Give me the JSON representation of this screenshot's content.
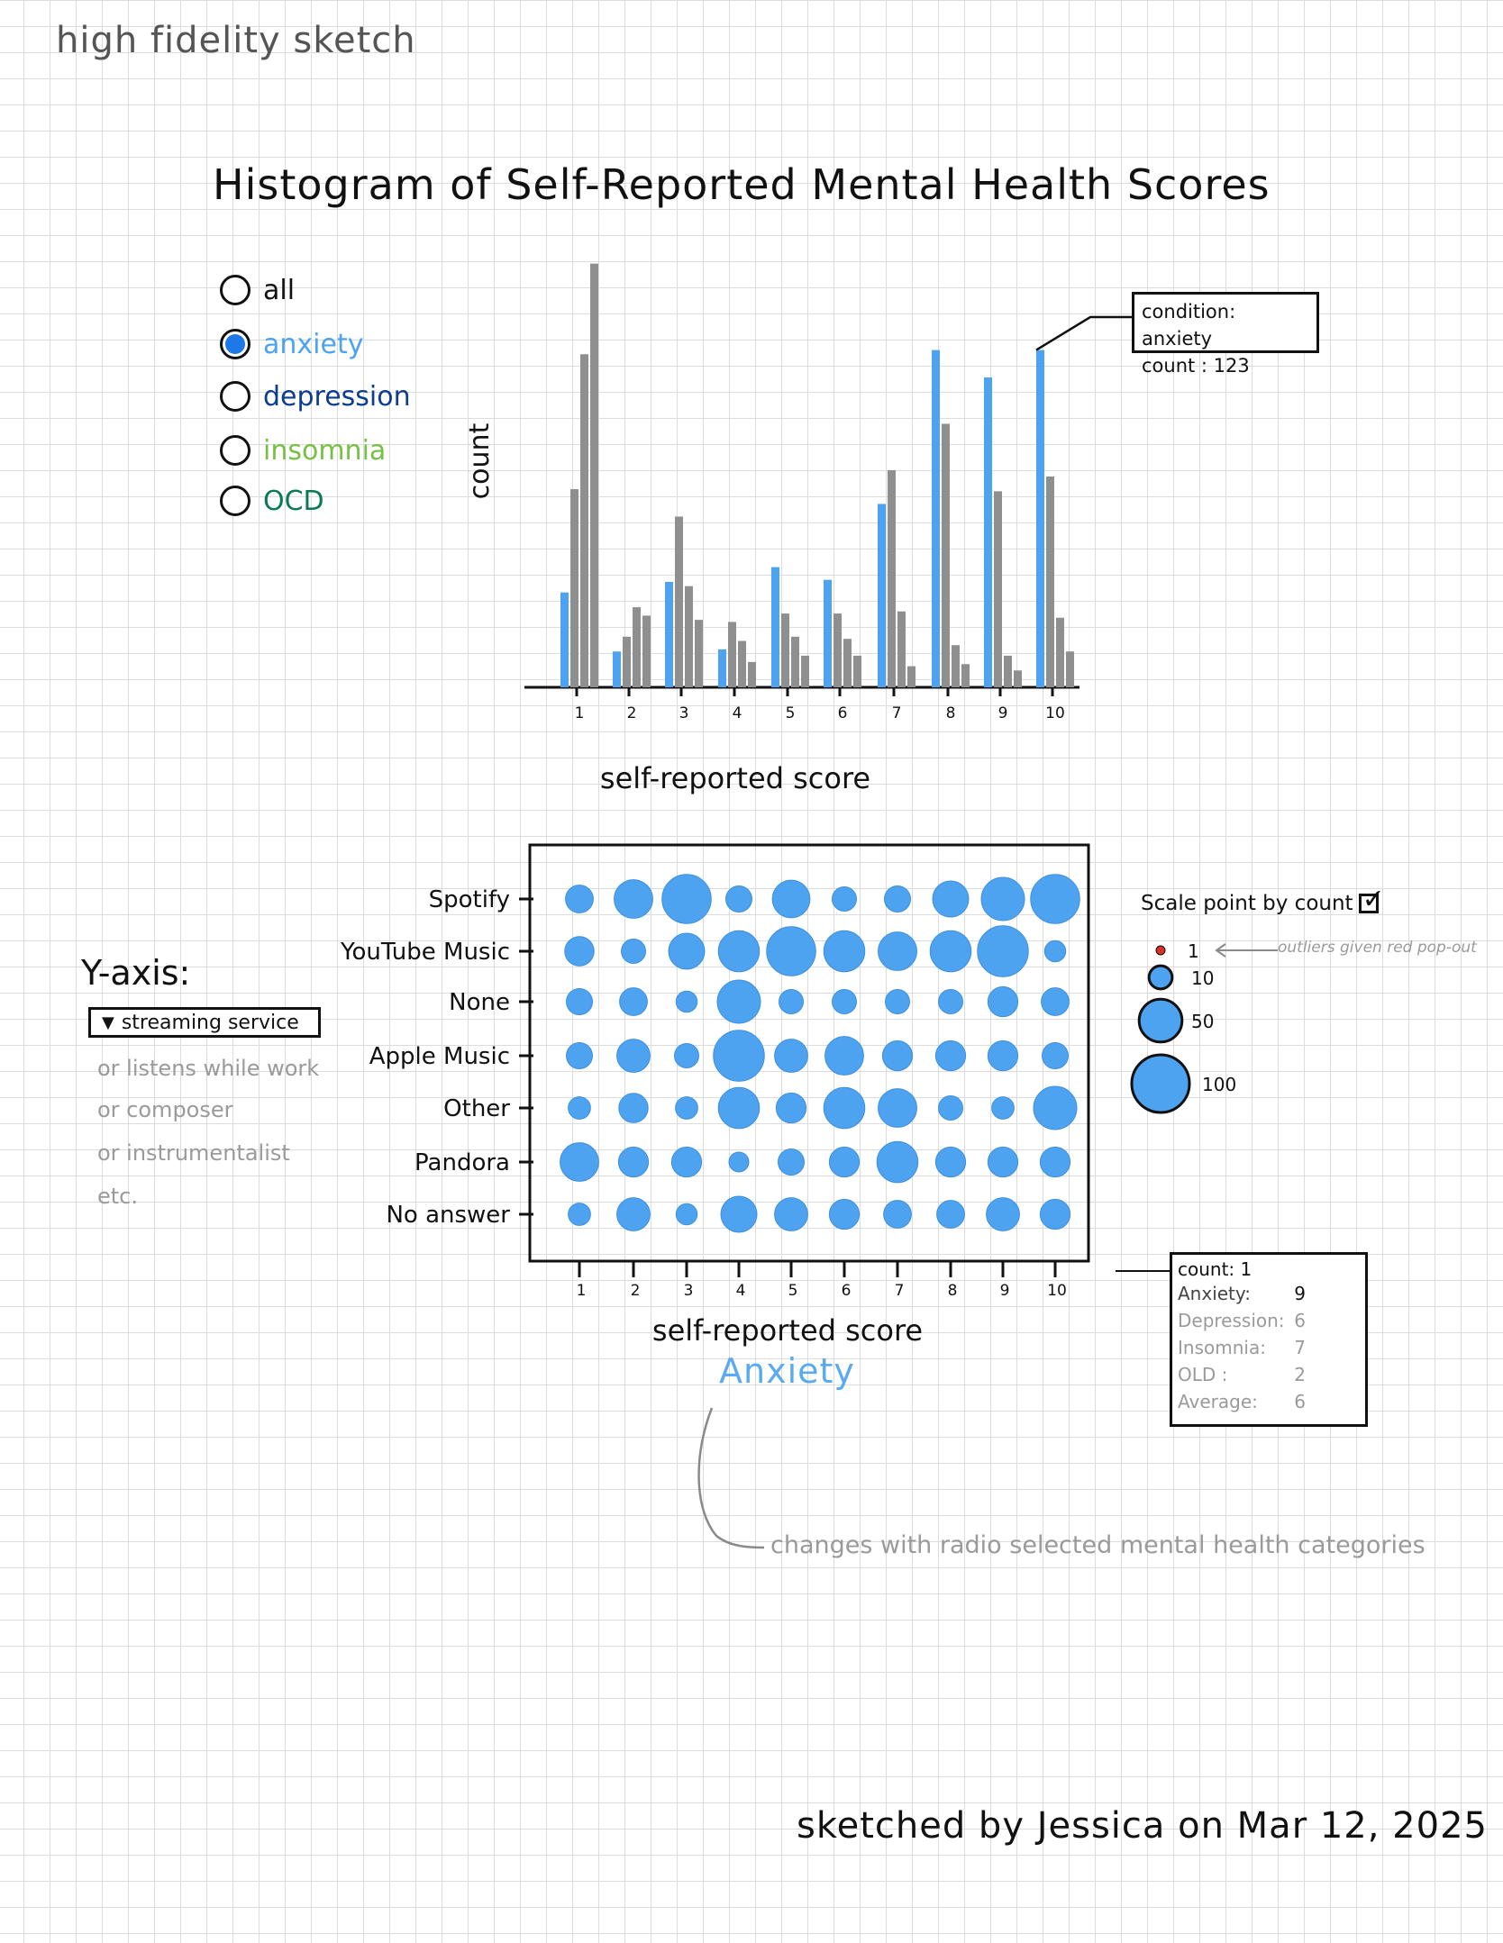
{
  "sketch_label": "high fidelity sketch",
  "histogram": {
    "title": "Histogram of Self-Reported Mental Health Scores",
    "radio_options": [
      {
        "label": "all",
        "color": "#111111",
        "selected": false
      },
      {
        "label": "anxiety",
        "color": "#4ea3f0",
        "selected": true
      },
      {
        "label": "depression",
        "color": "#0b3d91",
        "selected": false
      },
      {
        "label": "insomnia",
        "color": "#76c043",
        "selected": false
      },
      {
        "label": "OCD",
        "color": "#0a7a55",
        "selected": false
      }
    ],
    "tooltip": {
      "condition_line": "condition: anxiety",
      "count_line": "count : 123"
    }
  },
  "scatter": {
    "yaxis_heading": "Y-axis:",
    "yaxis_selected": "streaming service",
    "yaxis_alternatives": [
      "or listens while work",
      "or composer",
      "or instrumentalist",
      "etc."
    ],
    "scale_toggle": {
      "label": "Scale point by count",
      "checked": true
    },
    "outlier_note": "outliers given red pop-out",
    "caption": "Anxiety",
    "detail": {
      "count_line": "count: 1",
      "rows": [
        {
          "label": "Anxiety:",
          "value": "9",
          "muted": false
        },
        {
          "label": "Depression:",
          "value": "6",
          "muted": true
        },
        {
          "label": "Insomnia:",
          "value": "7",
          "muted": true
        },
        {
          "label": "OLD :",
          "value": "2",
          "muted": true
        },
        {
          "label": "Average:",
          "value": "6",
          "muted": true
        }
      ]
    }
  },
  "changes_note": "changes with radio selected mental health categories",
  "signature": "sketched by Jessica on Mar 12, 2025",
  "chart_data": [
    {
      "type": "bar",
      "xlabel": "self-reported score",
      "ylabel": "count",
      "categories": [
        "1",
        "2",
        "3",
        "4",
        "5",
        "6",
        "7",
        "8",
        "9",
        "10"
      ],
      "ylim": [
        0,
        200
      ],
      "highlight_color": "#4ea3f0",
      "other_color": "#8f8f8f",
      "series": [
        {
          "name": "anxiety",
          "values": [
            45,
            17,
            50,
            18,
            57,
            51,
            87,
            160,
            147,
            160
          ]
        },
        {
          "name": "",
          "values": [
            94,
            24,
            81,
            31,
            35,
            35,
            103,
            125,
            93,
            100
          ]
        },
        {
          "name": "",
          "values": [
            158,
            38,
            48,
            22,
            24,
            23,
            36,
            20,
            15,
            33
          ]
        },
        {
          "name": "",
          "values": [
            201,
            34,
            32,
            12,
            15,
            15,
            10,
            11,
            8,
            17
          ]
        }
      ]
    },
    {
      "type": "scatter",
      "xlabel": "self-reported score",
      "x": [
        1,
        2,
        3,
        4,
        5,
        6,
        7,
        8,
        9,
        10
      ],
      "categories": [
        "Spotify",
        "YouTube Music",
        "None",
        "Apple Music",
        "Other",
        "Pandora",
        "No answer"
      ],
      "color": "#4ea3f0",
      "size_legend": [
        1,
        10,
        50,
        100
      ],
      "counts": [
        [
          12,
          30,
          55,
          10,
          28,
          8,
          10,
          25,
          40,
          55
        ],
        [
          14,
          8,
          25,
          35,
          55,
          35,
          30,
          35,
          60,
          5
        ],
        [
          10,
          12,
          5,
          40,
          8,
          8,
          8,
          8,
          15,
          12
        ],
        [
          10,
          20,
          8,
          60,
          20,
          30,
          15,
          15,
          15,
          10
        ],
        [
          6,
          14,
          6,
          35,
          15,
          35,
          30,
          8,
          6,
          40
        ],
        [
          30,
          15,
          15,
          4,
          10,
          15,
          35,
          15,
          15,
          15
        ],
        [
          6,
          20,
          5,
          25,
          20,
          15,
          12,
          12,
          20,
          15
        ]
      ]
    }
  ]
}
